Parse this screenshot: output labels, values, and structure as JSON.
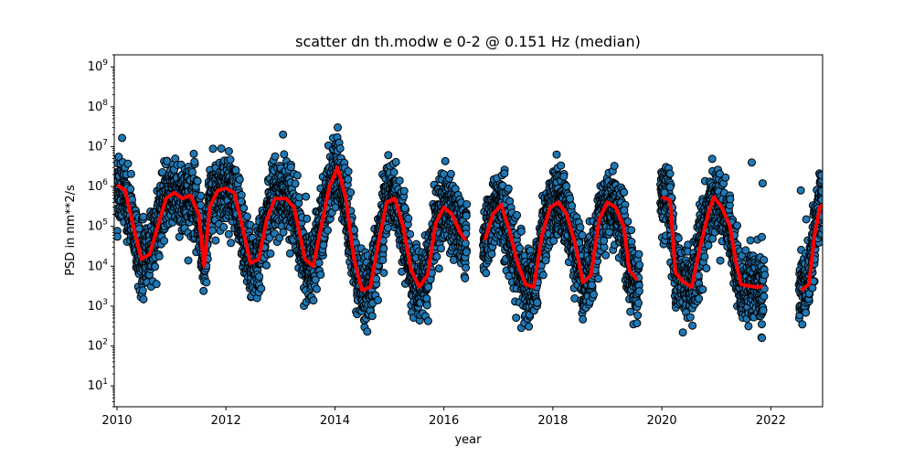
{
  "chart_data": {
    "type": "scatter",
    "title": "scatter dn th.modw e 0-2 @ 0.151 Hz (median)",
    "xlabel": "year",
    "ylabel": "PSD in nm**2/s",
    "xlim": [
      2009.95,
      2022.95
    ],
    "ylim": [
      3,
      2000000000
    ],
    "yscale": "log",
    "grid": false,
    "x_ticks": [
      2010,
      2012,
      2014,
      2016,
      2018,
      2020,
      2022
    ],
    "y_ticks": [
      10,
      100,
      1000,
      10000,
      100000,
      1000000,
      10000000,
      100000000,
      1000000000
    ],
    "y_tick_labels": [
      "10^1",
      "10^2",
      "10^3",
      "10^4",
      "10^5",
      "10^6",
      "10^7",
      "10^8",
      "10^9"
    ],
    "scatter_color": "#1f77b4",
    "median_color": "#ff0000",
    "median_series": [
      [
        2010.0,
        1100000
      ],
      [
        2010.15,
        800000
      ],
      [
        2010.3,
        100000
      ],
      [
        2010.45,
        15000
      ],
      [
        2010.6,
        20000
      ],
      [
        2010.75,
        100000
      ],
      [
        2010.9,
        500000
      ],
      [
        2011.05,
        700000
      ],
      [
        2011.2,
        500000
      ],
      [
        2011.35,
        600000
      ],
      [
        2011.5,
        200000
      ],
      [
        2011.6,
        10000
      ],
      [
        2011.7,
        300000
      ],
      [
        2011.85,
        800000
      ],
      [
        2012.0,
        900000
      ],
      [
        2012.15,
        700000
      ],
      [
        2012.3,
        100000
      ],
      [
        2012.45,
        12000
      ],
      [
        2012.6,
        15000
      ],
      [
        2012.75,
        150000
      ],
      [
        2012.9,
        500000
      ],
      [
        2013.1,
        500000
      ],
      [
        2013.25,
        300000
      ],
      [
        2013.45,
        15000
      ],
      [
        2013.6,
        10000
      ],
      [
        2013.75,
        100000
      ],
      [
        2013.9,
        1000000
      ],
      [
        2014.05,
        3000000
      ],
      [
        2014.2,
        500000
      ],
      [
        2014.35,
        15000
      ],
      [
        2014.5,
        2500
      ],
      [
        2014.65,
        3000
      ],
      [
        2014.8,
        40000
      ],
      [
        2014.95,
        400000
      ],
      [
        2015.1,
        500000
      ],
      [
        2015.25,
        100000
      ],
      [
        2015.4,
        8000
      ],
      [
        2015.55,
        3000
      ],
      [
        2015.7,
        6000
      ],
      [
        2015.85,
        120000
      ],
      [
        2016.0,
        300000
      ],
      [
        2016.15,
        200000
      ],
      [
        2016.3,
        70000
      ],
      [
        2016.4,
        45000
      ],
      [
        2016.75,
        45000
      ],
      [
        2016.9,
        200000
      ],
      [
        2017.05,
        350000
      ],
      [
        2017.2,
        80000
      ],
      [
        2017.35,
        12000
      ],
      [
        2017.5,
        3500
      ],
      [
        2017.65,
        3000
      ],
      [
        2017.8,
        60000
      ],
      [
        2017.95,
        300000
      ],
      [
        2018.1,
        400000
      ],
      [
        2018.25,
        200000
      ],
      [
        2018.4,
        40000
      ],
      [
        2018.55,
        4000
      ],
      [
        2018.7,
        6000
      ],
      [
        2018.85,
        150000
      ],
      [
        2019.0,
        400000
      ],
      [
        2019.15,
        300000
      ],
      [
        2019.3,
        100000
      ],
      [
        2019.4,
        8000
      ],
      [
        2019.55,
        4500
      ],
      [
        2020.0,
        550000
      ],
      [
        2020.15,
        450000
      ],
      [
        2020.25,
        7000
      ],
      [
        2020.4,
        4000
      ],
      [
        2020.55,
        3000
      ],
      [
        2020.7,
        30000
      ],
      [
        2020.85,
        200000
      ],
      [
        2020.95,
        550000
      ],
      [
        2021.1,
        300000
      ],
      [
        2021.25,
        100000
      ],
      [
        2021.35,
        15000
      ],
      [
        2021.45,
        3500
      ],
      [
        2021.6,
        3200
      ],
      [
        2021.75,
        3000
      ],
      [
        2021.85,
        3100
      ],
      [
        2022.55,
        2500
      ],
      [
        2022.7,
        3500
      ],
      [
        2022.8,
        60000
      ],
      [
        2022.9,
        300000
      ],
      [
        2022.95,
        350000
      ]
    ]
  }
}
